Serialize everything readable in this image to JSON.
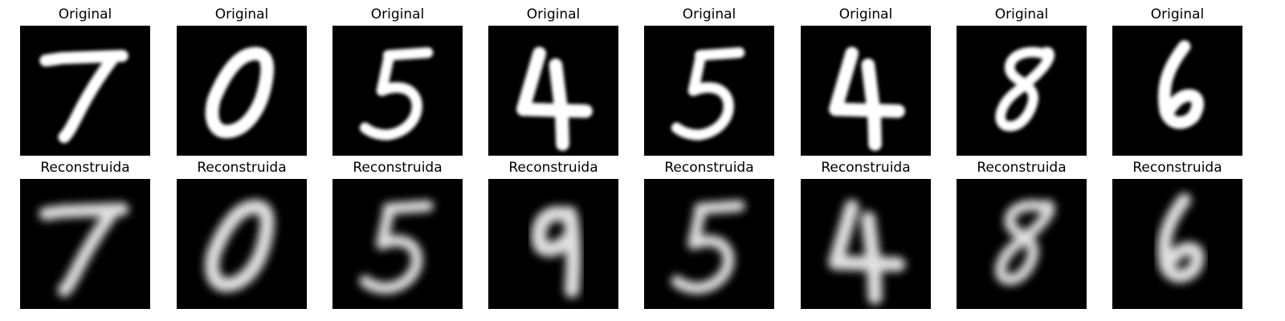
{
  "rows": [
    {
      "label": "Original",
      "digits": [
        {
          "digit": "7",
          "quality": "sharp"
        },
        {
          "digit": "0",
          "quality": "sharp"
        },
        {
          "digit": "5",
          "quality": "sharp"
        },
        {
          "digit": "4",
          "quality": "sharp"
        },
        {
          "digit": "5",
          "quality": "sharp"
        },
        {
          "digit": "4",
          "quality": "sharp"
        },
        {
          "digit": "8",
          "quality": "sharp"
        },
        {
          "digit": "6",
          "quality": "sharp"
        }
      ]
    },
    {
      "label": "Reconstruida",
      "digits": [
        {
          "digit": "7",
          "quality": "blurred"
        },
        {
          "digit": "0",
          "quality": "blurred"
        },
        {
          "digit": "5",
          "quality": "blurred"
        },
        {
          "digit": "9",
          "quality": "blurred"
        },
        {
          "digit": "5",
          "quality": "blurred"
        },
        {
          "digit": "4",
          "quality": "blurred"
        },
        {
          "digit": "8",
          "quality": "blurred"
        },
        {
          "digit": "6",
          "quality": "blurred"
        }
      ]
    }
  ],
  "colors": {
    "background": "#000000",
    "stroke": "#ffffff",
    "page": "#ffffff",
    "title": "#000000"
  }
}
